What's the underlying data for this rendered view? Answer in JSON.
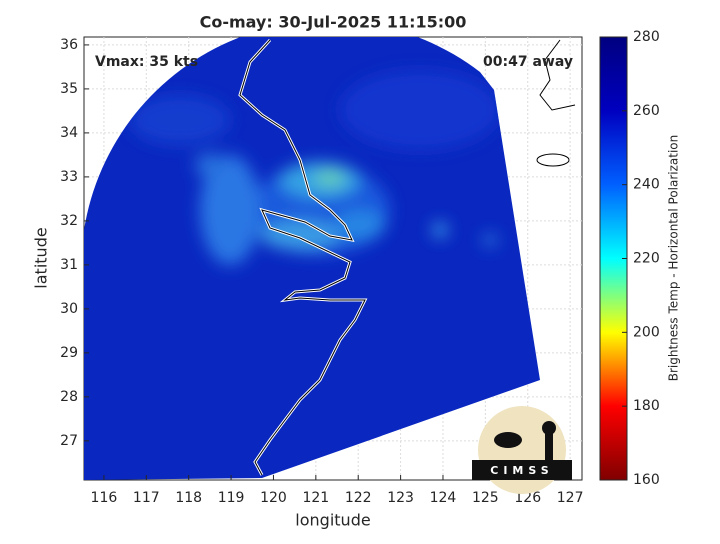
{
  "chart_data": {
    "type": "image",
    "title": "Co-may: 30-Jul-2025 11:15:00",
    "xlabel": "longitude",
    "ylabel": "latitude",
    "xlim": [
      115.53,
      127.28
    ],
    "ylim": [
      26.11,
      36.18
    ],
    "xticks": [
      116,
      117,
      118,
      119,
      120,
      121,
      122,
      123,
      124,
      125,
      126,
      127
    ],
    "yticks": [
      27,
      28,
      29,
      30,
      31,
      32,
      33,
      34,
      35,
      36
    ],
    "grid": true,
    "annotations": [
      "Vmax: 35 kts",
      "00:47 away"
    ],
    "logo": "CIMSS",
    "colorbar": {
      "label": "Brightness Temp - Horizontal Polarization",
      "lim": [
        160,
        280
      ],
      "ticks": [
        160,
        180,
        200,
        220,
        240,
        260,
        280
      ],
      "colormap": [
        "#800000",
        "#ff0000",
        "#ffff00",
        "#00ffff",
        "#0060ff",
        "#0000c0",
        "#000080"
      ]
    }
  }
}
